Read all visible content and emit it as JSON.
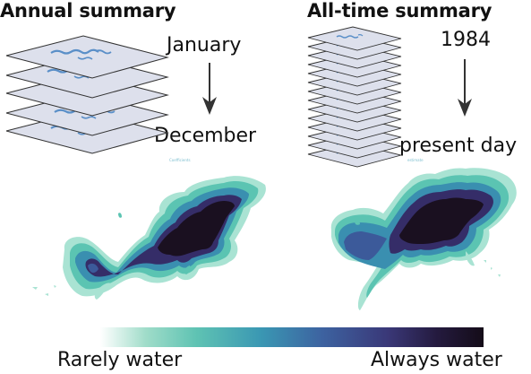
{
  "annual": {
    "heading": "Annual summary",
    "start_label": "January",
    "end_label": "December",
    "tiny_label": "Coefficients"
  },
  "alltime": {
    "heading": "All-time summary",
    "start_label": "1984",
    "end_label": "present day",
    "tiny_label": "estimate"
  },
  "legend": {
    "low_label": "Rarely water",
    "high_label": "Always water",
    "colors": [
      "#a9e3d3",
      "#5bc4b2",
      "#3a8fb0",
      "#3c5a9a",
      "#352d68",
      "#1a1020"
    ]
  },
  "colors": {
    "layer_fill": "#dde0ec",
    "layer_stroke": "#333333",
    "layer_water": "#5a8fc8",
    "arrow": "#333333"
  }
}
